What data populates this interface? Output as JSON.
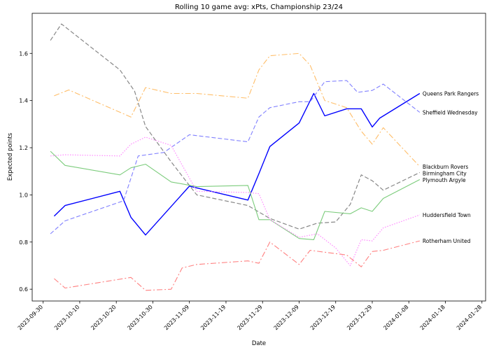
{
  "chart_data": {
    "type": "line",
    "title": "Rolling 10 game avg: xPts, Championship 23/24",
    "xlabel": "Date",
    "ylabel": "Expected points",
    "xlim": [
      "2023-09-27",
      "2024-01-29"
    ],
    "ylim": [
      0.55,
      1.77
    ],
    "x_ticks": [
      "2023-09-30",
      "2023-10-10",
      "2023-10-20",
      "2023-10-30",
      "2023-11-09",
      "2023-11-19",
      "2023-11-29",
      "2023-12-09",
      "2023-12-19",
      "2023-12-29",
      "2024-01-08",
      "2024-01-18",
      "2024-01-28"
    ],
    "y_ticks": [
      0.6,
      0.8,
      1.0,
      1.2,
      1.4,
      1.6
    ],
    "grid": false,
    "legend": "labels at line ends",
    "series": [
      {
        "name": "Queens Park Rangers",
        "color": "#0000ff",
        "dash": "solid",
        "width": 1.4,
        "points": [
          [
            "2023-10-03",
            0.91
          ],
          [
            "2023-10-06",
            0.955
          ],
          [
            "2023-10-21",
            1.015
          ],
          [
            "2023-10-24",
            0.905
          ],
          [
            "2023-10-28",
            0.83
          ],
          [
            "2023-11-09",
            1.037
          ],
          [
            "2023-11-25",
            0.978
          ],
          [
            "2023-11-28",
            1.09
          ],
          [
            "2023-12-01",
            1.205
          ],
          [
            "2023-12-09",
            1.305
          ],
          [
            "2023-12-13",
            1.43
          ],
          [
            "2023-12-16",
            1.335
          ],
          [
            "2023-12-22",
            1.365
          ],
          [
            "2023-12-26",
            1.365
          ],
          [
            "2023-12-29",
            1.288
          ],
          [
            "2023-12-31",
            1.325
          ],
          [
            "2024-01-11",
            1.43
          ]
        ]
      },
      {
        "name": "Sheffield Wednesday",
        "color": "#8080ff",
        "dash": "6,3",
        "width": 1.1,
        "points": [
          [
            "2023-10-02",
            0.835
          ],
          [
            "2023-10-06",
            0.89
          ],
          [
            "2023-10-22",
            0.975
          ],
          [
            "2023-10-26",
            1.165
          ],
          [
            "2023-11-02",
            1.18
          ],
          [
            "2023-11-09",
            1.255
          ],
          [
            "2023-11-25",
            1.225
          ],
          [
            "2023-11-28",
            1.33
          ],
          [
            "2023-12-01",
            1.37
          ],
          [
            "2023-12-09",
            1.395
          ],
          [
            "2023-12-12",
            1.395
          ],
          [
            "2023-12-16",
            1.48
          ],
          [
            "2023-12-22",
            1.485
          ],
          [
            "2023-12-25",
            1.435
          ],
          [
            "2023-12-29",
            1.443
          ],
          [
            "2024-01-01",
            1.47
          ],
          [
            "2024-01-11",
            1.35
          ]
        ]
      },
      {
        "name": "Blackburn Rovers",
        "color": "#ffbe69",
        "dash": "8,3,2,3",
        "width": 1.1,
        "points": [
          [
            "2023-10-03",
            1.42
          ],
          [
            "2023-10-07",
            1.445
          ],
          [
            "2023-10-24",
            1.33
          ],
          [
            "2023-10-28",
            1.455
          ],
          [
            "2023-11-04",
            1.43
          ],
          [
            "2023-11-11",
            1.43
          ],
          [
            "2023-11-25",
            1.41
          ],
          [
            "2023-11-28",
            1.53
          ],
          [
            "2023-12-01",
            1.59
          ],
          [
            "2023-12-09",
            1.6
          ],
          [
            "2023-12-12",
            1.55
          ],
          [
            "2023-12-16",
            1.4
          ],
          [
            "2023-12-22",
            1.37
          ],
          [
            "2023-12-26",
            1.27
          ],
          [
            "2023-12-29",
            1.215
          ],
          [
            "2024-01-01",
            1.285
          ],
          [
            "2024-01-11",
            1.12
          ]
        ]
      },
      {
        "name": "Birmingham City",
        "color": "#888888",
        "dash": "6,3",
        "width": 1.2,
        "points": [
          [
            "2023-10-02",
            1.655
          ],
          [
            "2023-10-05",
            1.725
          ],
          [
            "2023-10-21",
            1.53
          ],
          [
            "2023-10-25",
            1.44
          ],
          [
            "2023-10-28",
            1.29
          ],
          [
            "2023-11-04",
            1.14
          ],
          [
            "2023-11-11",
            1.0
          ],
          [
            "2023-11-25",
            0.955
          ],
          [
            "2023-12-01",
            0.9
          ],
          [
            "2023-12-09",
            0.855
          ],
          [
            "2023-12-14",
            0.88
          ],
          [
            "2023-12-19",
            0.885
          ],
          [
            "2023-12-23",
            0.96
          ],
          [
            "2023-12-26",
            1.085
          ],
          [
            "2023-12-29",
            1.06
          ],
          [
            "2024-01-01",
            1.02
          ],
          [
            "2024-01-11",
            1.095
          ]
        ]
      },
      {
        "name": "Plymouth Argyle",
        "color": "#7ccc7c",
        "dash": "solid",
        "width": 1.1,
        "points": [
          [
            "2023-10-02",
            1.185
          ],
          [
            "2023-10-06",
            1.125
          ],
          [
            "2023-10-21",
            1.085
          ],
          [
            "2023-10-24",
            1.115
          ],
          [
            "2023-10-28",
            1.13
          ],
          [
            "2023-11-04",
            1.055
          ],
          [
            "2023-11-11",
            1.035
          ],
          [
            "2023-11-25",
            1.04
          ],
          [
            "2023-11-28",
            0.895
          ],
          [
            "2023-12-01",
            0.895
          ],
          [
            "2023-12-09",
            0.815
          ],
          [
            "2023-12-13",
            0.81
          ],
          [
            "2023-12-16",
            0.93
          ],
          [
            "2023-12-23",
            0.92
          ],
          [
            "2023-12-26",
            0.945
          ],
          [
            "2023-12-29",
            0.93
          ],
          [
            "2024-01-01",
            0.985
          ],
          [
            "2024-01-11",
            1.065
          ]
        ]
      },
      {
        "name": "Huddersfield Town",
        "color": "#ff88ff",
        "dash": "1.5,2",
        "width": 1.2,
        "points": [
          [
            "2023-10-02",
            1.165
          ],
          [
            "2023-10-06",
            1.17
          ],
          [
            "2023-10-21",
            1.165
          ],
          [
            "2023-10-24",
            1.215
          ],
          [
            "2023-10-28",
            1.245
          ],
          [
            "2023-11-04",
            1.21
          ],
          [
            "2023-11-11",
            1.015
          ],
          [
            "2023-11-25",
            1.01
          ],
          [
            "2023-11-28",
            1.005
          ],
          [
            "2023-12-01",
            0.895
          ],
          [
            "2023-12-09",
            0.82
          ],
          [
            "2023-12-14",
            0.835
          ],
          [
            "2023-12-19",
            0.775
          ],
          [
            "2023-12-23",
            0.7
          ],
          [
            "2023-12-26",
            0.81
          ],
          [
            "2023-12-29",
            0.805
          ],
          [
            "2024-01-01",
            0.86
          ],
          [
            "2024-01-11",
            0.915
          ]
        ]
      },
      {
        "name": "Rotherham United",
        "color": "#ff8080",
        "dash": "8,3,2,3",
        "width": 1.1,
        "points": [
          [
            "2023-10-03",
            0.645
          ],
          [
            "2023-10-06",
            0.605
          ],
          [
            "2023-10-24",
            0.65
          ],
          [
            "2023-10-28",
            0.595
          ],
          [
            "2023-11-04",
            0.6
          ],
          [
            "2023-11-07",
            0.69
          ],
          [
            "2023-11-11",
            0.705
          ],
          [
            "2023-11-25",
            0.72
          ],
          [
            "2023-11-28",
            0.71
          ],
          [
            "2023-12-01",
            0.8
          ],
          [
            "2023-12-09",
            0.705
          ],
          [
            "2023-12-12",
            0.765
          ],
          [
            "2023-12-22",
            0.745
          ],
          [
            "2023-12-26",
            0.695
          ],
          [
            "2023-12-29",
            0.76
          ],
          [
            "2024-01-01",
            0.765
          ],
          [
            "2024-01-11",
            0.805
          ]
        ]
      }
    ]
  }
}
